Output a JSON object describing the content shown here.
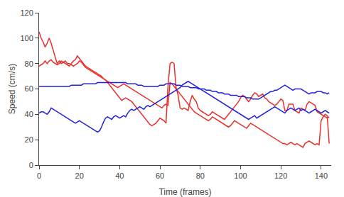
{
  "chart_data": {
    "type": "line",
    "xlabel": "Time (frames)",
    "ylabel": "Speed (cm/s)",
    "xlim": [
      0,
      145
    ],
    "ylim": [
      0,
      120
    ],
    "xticks": [
      0,
      20,
      40,
      60,
      80,
      100,
      120,
      140
    ],
    "yticks": [
      0,
      20,
      40,
      60,
      80,
      100,
      120
    ],
    "grid": false,
    "x": [
      0,
      1,
      2,
      3,
      4,
      5,
      6,
      7,
      8,
      9,
      10,
      11,
      12,
      13,
      14,
      15,
      16,
      17,
      18,
      19,
      20,
      21,
      22,
      23,
      24,
      25,
      26,
      27,
      28,
      29,
      30,
      31,
      32,
      33,
      34,
      35,
      36,
      37,
      38,
      39,
      40,
      41,
      42,
      43,
      44,
      45,
      46,
      47,
      48,
      49,
      50,
      51,
      52,
      53,
      54,
      55,
      56,
      57,
      58,
      59,
      60,
      61,
      62,
      63,
      64,
      65,
      66,
      67,
      68,
      69,
      70,
      71,
      72,
      73,
      74,
      75,
      76,
      77,
      78,
      79,
      80,
      81,
      82,
      83,
      84,
      85,
      86,
      87,
      88,
      89,
      90,
      91,
      92,
      93,
      94,
      95,
      96,
      97,
      98,
      99,
      100,
      101,
      102,
      103,
      104,
      105,
      106,
      107,
      108,
      109,
      110,
      111,
      112,
      113,
      114,
      115,
      116,
      117,
      118,
      119,
      120,
      121,
      122,
      123,
      124,
      125,
      126,
      127,
      128,
      129,
      130,
      131,
      132,
      133,
      134,
      135,
      136,
      137,
      138,
      139,
      140,
      141,
      142,
      143,
      144
    ],
    "series": [
      {
        "color": "#e8302a",
        "values": [
          105,
          100,
          97,
          93,
          96,
          100,
          96,
          90,
          85,
          80,
          82,
          80,
          81,
          82,
          80,
          80,
          79,
          78,
          79,
          80,
          82,
          81,
          79,
          77,
          76,
          75,
          74,
          73,
          72,
          71,
          70,
          69,
          68,
          67,
          66,
          65,
          64,
          63,
          62,
          61,
          62,
          63,
          64,
          63,
          62,
          61,
          60,
          59,
          58,
          57,
          56,
          55,
          54,
          53,
          52,
          51,
          50,
          49,
          48,
          47,
          46,
          45,
          47,
          48,
          47,
          65,
          64,
          62,
          60,
          58,
          56,
          54,
          52,
          50,
          48,
          46,
          44,
          42,
          41,
          40,
          39,
          38,
          37,
          36,
          35,
          36,
          38,
          37,
          36,
          35,
          34,
          33,
          32,
          31,
          30,
          31,
          33,
          35,
          34,
          33,
          32,
          31,
          30,
          29,
          31,
          33,
          32,
          31,
          30,
          29,
          28,
          27,
          26,
          25,
          24,
          23,
          22,
          21,
          20,
          19,
          18,
          17,
          17,
          16,
          17,
          18,
          17,
          16,
          17,
          16,
          15,
          14,
          17,
          18,
          19,
          18,
          17,
          16,
          17,
          16,
          35,
          38,
          40,
          39,
          17
        ]
      },
      {
        "color": "#e8302a",
        "values": [
          78,
          79,
          80,
          82,
          80,
          82,
          83,
          81,
          80,
          79,
          80,
          82,
          81,
          80,
          79,
          78,
          80,
          82,
          83,
          86,
          84,
          82,
          80,
          78,
          77,
          76,
          75,
          74,
          73,
          72,
          71,
          70,
          68,
          67,
          65,
          63,
          61,
          59,
          57,
          55,
          53,
          51,
          52,
          53,
          52,
          51,
          50,
          48,
          46,
          44,
          42,
          40,
          38,
          36,
          34,
          32,
          31,
          32,
          33,
          35,
          37,
          36,
          35,
          33,
          63,
          80,
          81,
          80,
          61,
          55,
          45,
          44,
          45,
          44,
          43,
          50,
          55,
          52,
          50,
          45,
          43,
          42,
          41,
          40,
          39,
          40,
          42,
          41,
          40,
          39,
          38,
          37,
          36,
          38,
          40,
          42,
          44,
          46,
          48,
          50,
          53,
          55,
          54,
          52,
          50,
          52,
          55,
          57,
          56,
          54,
          55,
          56,
          53,
          52,
          50,
          49,
          48,
          47,
          48,
          50,
          52,
          51,
          43,
          43,
          48,
          48,
          48,
          43,
          42,
          41,
          45,
          44,
          43,
          48,
          50,
          49,
          48,
          47,
          42,
          41,
          40,
          39,
          38,
          37,
          38
        ]
      },
      {
        "color": "#2020dd",
        "values": [
          62,
          62,
          62,
          62,
          62,
          62,
          62,
          62,
          62,
          62,
          62,
          62,
          62,
          62,
          62,
          62,
          63,
          63,
          63,
          63,
          63,
          63,
          64,
          64,
          64,
          64,
          64,
          64,
          64,
          65,
          65,
          65,
          65,
          65,
          65,
          65,
          65,
          65,
          65,
          65,
          65,
          65,
          65,
          65,
          64,
          64,
          64,
          64,
          64,
          63,
          63,
          63,
          62,
          62,
          62,
          62,
          62,
          62,
          62,
          62,
          63,
          63,
          63,
          64,
          64,
          64,
          64,
          64,
          63,
          63,
          63,
          62,
          62,
          62,
          62,
          61,
          61,
          61,
          61,
          60,
          60,
          60,
          60,
          59,
          59,
          59,
          58,
          58,
          58,
          57,
          57,
          57,
          56,
          56,
          56,
          55,
          55,
          55,
          55,
          54,
          54,
          54,
          54,
          53,
          53,
          53,
          52,
          52,
          52,
          52,
          53,
          54,
          55,
          56,
          57,
          58,
          58,
          59,
          59,
          60,
          61,
          62,
          63,
          62,
          61,
          60,
          59,
          60,
          60,
          60,
          60,
          59,
          58,
          57,
          56,
          57,
          57,
          57,
          58,
          58,
          58,
          57,
          57,
          56,
          57
        ]
      },
      {
        "color": "#2020dd",
        "values": [
          41,
          42,
          42,
          41,
          40,
          42,
          45,
          44,
          43,
          42,
          41,
          40,
          39,
          38,
          37,
          36,
          35,
          34,
          33,
          34,
          35,
          34,
          33,
          32,
          31,
          30,
          29,
          28,
          27,
          26,
          27,
          30,
          34,
          37,
          38,
          37,
          36,
          38,
          39,
          38,
          37,
          38,
          39,
          38,
          41,
          43,
          44,
          43,
          44,
          45,
          46,
          45,
          44,
          46,
          47,
          46,
          47,
          48,
          49,
          50,
          51,
          52,
          53,
          54,
          55,
          56,
          57,
          58,
          59,
          60,
          61,
          63,
          64,
          65,
          66,
          65,
          64,
          63,
          62,
          61,
          60,
          59,
          58,
          57,
          56,
          55,
          54,
          53,
          52,
          51,
          50,
          49,
          48,
          47,
          46,
          45,
          44,
          43,
          42,
          41,
          40,
          39,
          38,
          37,
          36,
          37,
          38,
          39,
          37,
          38,
          39,
          40,
          41,
          42,
          43,
          44,
          45,
          46,
          45,
          44,
          43,
          42,
          41,
          43,
          44,
          45,
          44,
          43,
          44,
          45,
          43,
          44,
          43,
          42,
          41,
          42,
          43,
          44,
          43,
          42,
          41,
          42,
          43,
          42,
          41
        ]
      }
    ]
  }
}
